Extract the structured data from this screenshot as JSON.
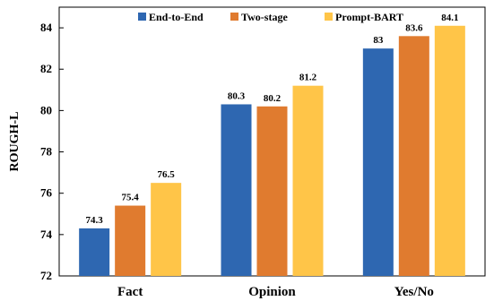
{
  "chart_data": {
    "type": "bar",
    "categories": [
      "Fact",
      "Opinion",
      "Yes/No"
    ],
    "series": [
      {
        "name": "End-to-End",
        "values": [
          74.3,
          80.3,
          83
        ],
        "labels": [
          "74.3",
          "80.3",
          "83"
        ],
        "color": "#2e67b1"
      },
      {
        "name": "Two-stage",
        "values": [
          75.4,
          80.2,
          83.6
        ],
        "labels": [
          "75.4",
          "80.2",
          "83.6"
        ],
        "color": "#e07b2f"
      },
      {
        "name": "Prompt-BART",
        "values": [
          76.5,
          81.2,
          84.1
        ],
        "labels": [
          "76.5",
          "81.2",
          "84.1"
        ],
        "color": "#ffc548"
      }
    ],
    "ylabel": "ROUGH-L",
    "xlabel": "",
    "ylim": [
      72,
      85
    ],
    "yticks": [
      72,
      74,
      76,
      78,
      80,
      82,
      84
    ],
    "grid": false,
    "legend_position": "top"
  }
}
